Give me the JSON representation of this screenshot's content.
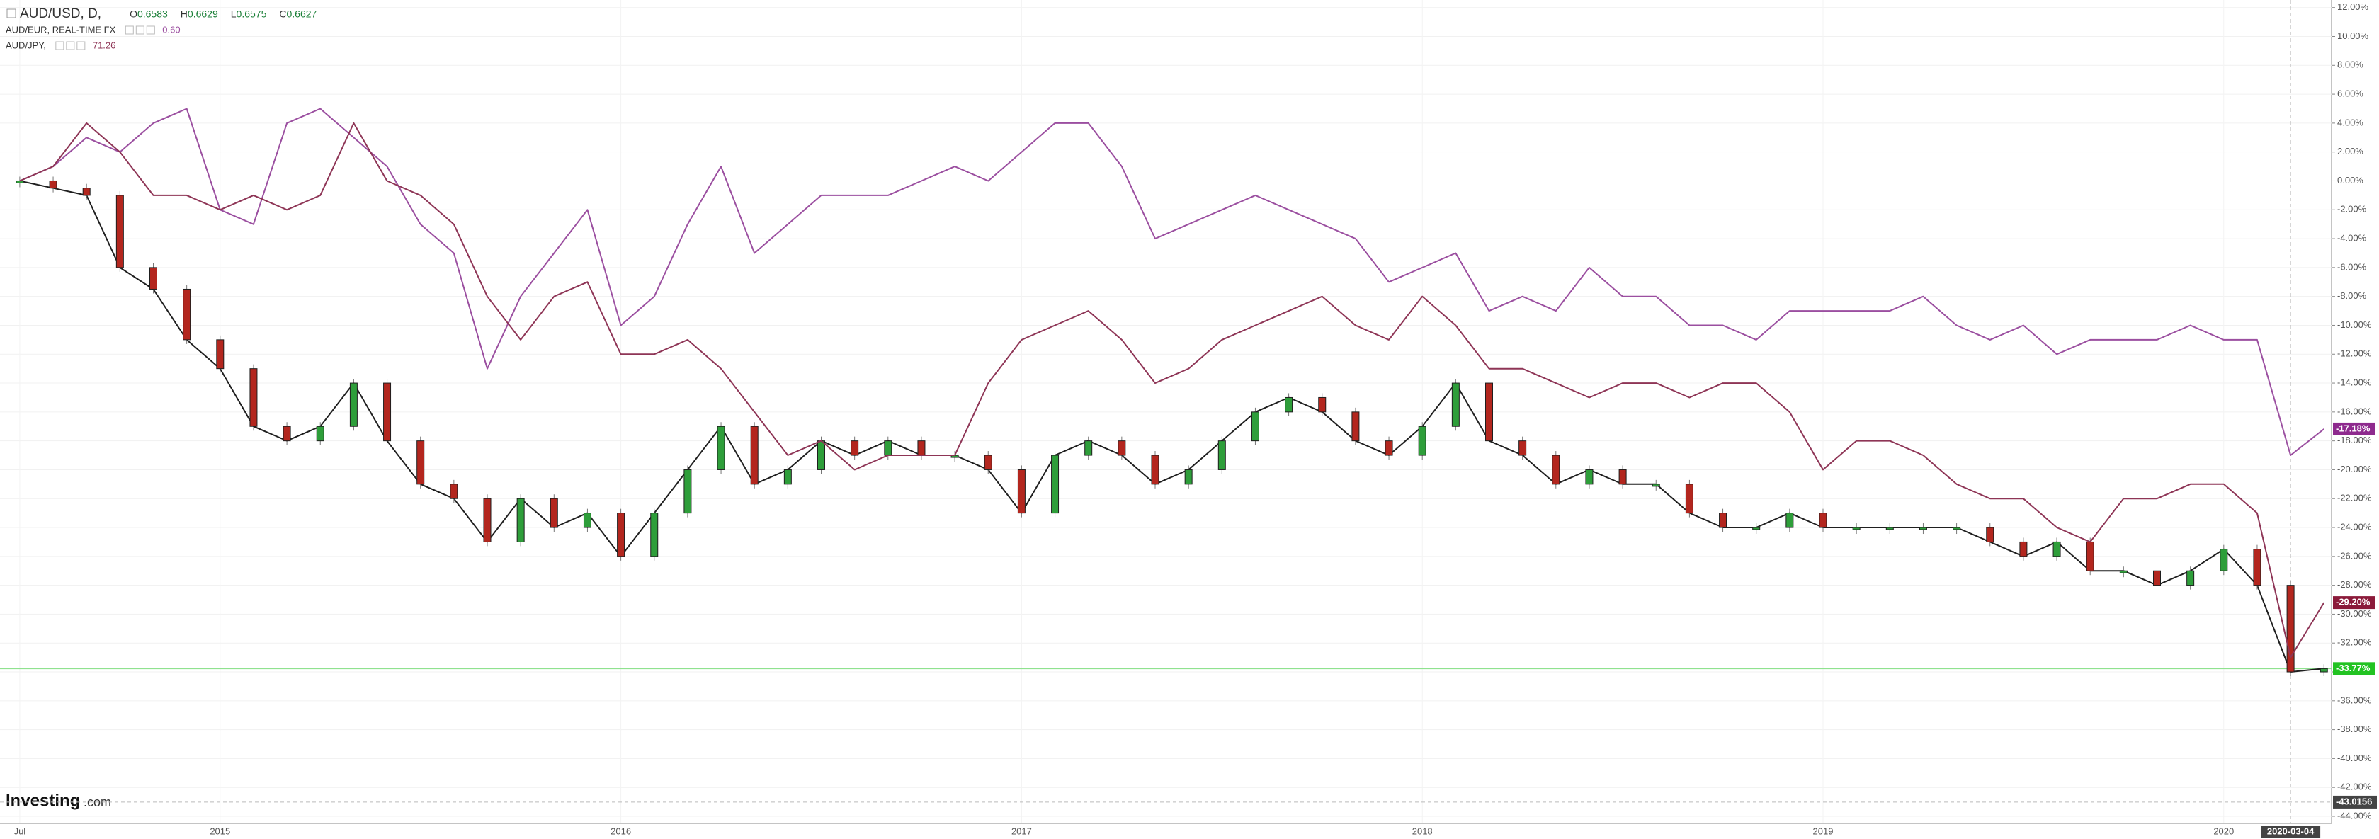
{
  "chart_data": {
    "type": "line",
    "header": {
      "symbol": "AUD/USD, D,",
      "ohlc": [
        {
          "label": "O",
          "value": 0.6583
        },
        {
          "label": "H",
          "value": 0.6629
        },
        {
          "label": "L",
          "value": 0.6575
        },
        {
          "label": "C",
          "value": 0.6627
        }
      ]
    },
    "watermark": "Investing",
    "watermark_suffix": ".com",
    "categories": [
      "Jul",
      null,
      null,
      null,
      null,
      null,
      "2015",
      null,
      null,
      null,
      null,
      null,
      null,
      null,
      null,
      null,
      null,
      null,
      "2016",
      null,
      null,
      null,
      null,
      null,
      null,
      null,
      null,
      null,
      null,
      null,
      "2017",
      null,
      null,
      null,
      null,
      null,
      null,
      null,
      null,
      null,
      null,
      null,
      "2018",
      null,
      null,
      null,
      null,
      null,
      null,
      null,
      null,
      null,
      null,
      null,
      "2019",
      null,
      null,
      null,
      null,
      null,
      null,
      null,
      null,
      null,
      null,
      null,
      "2020",
      null,
      "2020-03-04",
      null
    ],
    "highlight_category": 68,
    "series": [
      {
        "name": "AUD/USD, D,",
        "style": "candles",
        "color": "#1f1f1f",
        "up_color": "#2e9e3a",
        "down_color": "#b3261e",
        "badge_color": "#22c322",
        "line_color": "#8fe28f",
        "end_label": "-33.77%",
        "values": [
          0,
          -0.5,
          -1,
          -6,
          -7.5,
          -11,
          -13,
          -17,
          -18,
          -17,
          -14,
          -18,
          -21,
          -22,
          -25,
          -22,
          -24,
          -23,
          -26,
          -23,
          -20,
          -17,
          -21,
          -20,
          -18,
          -19,
          -18,
          -19,
          -19,
          -20,
          -23,
          -19,
          -18,
          -19,
          -21,
          -20,
          -18,
          -16,
          -15,
          -16,
          -18,
          -19,
          -17,
          -14,
          -18,
          -19,
          -21,
          -20,
          -21,
          -21,
          -23,
          -24,
          -24,
          -23,
          -24,
          -24,
          -24,
          -24,
          -24,
          -25,
          -26,
          -25,
          -27,
          -27,
          -28,
          -27,
          -25.5,
          -28,
          -34,
          -33.77
        ]
      },
      {
        "name": "AUD/EUR, REAL-TIME FX",
        "quote": "0.60",
        "style": "line",
        "color": "#9b4fa0",
        "badge_color": "#8e2a8e",
        "end_label": "-17.18%",
        "values": [
          0,
          1,
          3,
          2,
          4,
          5,
          -2,
          -3,
          4,
          5,
          3,
          1,
          -3,
          -5,
          -13,
          -8,
          -5,
          -2,
          -10,
          -8,
          -3,
          1,
          -5,
          -3,
          -1,
          -1,
          -1,
          0,
          1,
          0,
          2,
          4,
          4,
          1,
          -4,
          -3,
          -2,
          -1,
          -2,
          -3,
          -4,
          -7,
          -6,
          -5,
          -9,
          -8,
          -9,
          -6,
          -8,
          -8,
          -10,
          -10,
          -11,
          -9,
          -9,
          -9,
          -9,
          -8,
          -10,
          -11,
          -10,
          -12,
          -11,
          -11,
          -11,
          -10,
          -11,
          -11,
          -19,
          -17.18
        ]
      },
      {
        "name": "AUD/JPY,",
        "quote": 71.26,
        "style": "line",
        "color": "#8e3556",
        "badge_color": "#8b1a3a",
        "end_label": "-29.20%",
        "values": [
          0,
          1,
          4,
          2,
          -1,
          -1,
          -2,
          -1,
          -2,
          -1,
          4,
          0,
          -1,
          -3,
          -8,
          -11,
          -8,
          -7,
          -12,
          -12,
          -11,
          -13,
          -16,
          -19,
          -18,
          -20,
          -19,
          -19,
          -19,
          -14,
          -11,
          -10,
          -9,
          -11,
          -14,
          -13,
          -11,
          -10,
          -9,
          -8,
          -10,
          -11,
          -8,
          -10,
          -13,
          -13,
          -14,
          -15,
          -14,
          -14,
          -15,
          -14,
          -14,
          -16,
          -20,
          -18,
          -18,
          -19,
          -21,
          -22,
          -22,
          -24,
          -25,
          -22,
          -22,
          -21,
          -21,
          -23,
          -33,
          -29.2
        ]
      }
    ],
    "crosshair": {
      "y": -43.0156
    },
    "ylim": [
      12,
      -44.5
    ],
    "yticks": [
      {
        "value": 12,
        "label": "12.00%"
      },
      {
        "value": 10,
        "label": "10.00%"
      },
      {
        "value": 8,
        "label": "8.00%"
      },
      {
        "value": 6,
        "label": "6.00%"
      },
      {
        "value": 4,
        "label": "4.00%"
      },
      {
        "value": 2,
        "label": "2.00%"
      },
      {
        "value": 0,
        "label": "0.00%"
      },
      {
        "value": -2,
        "label": "-2.00%"
      },
      {
        "value": -4,
        "label": "-4.00%"
      },
      {
        "value": -6,
        "label": "-6.00%"
      },
      {
        "value": -8,
        "label": "-8.00%"
      },
      {
        "value": -10,
        "label": "-10.00%"
      },
      {
        "value": -12,
        "label": "-12.00%"
      },
      {
        "value": -14,
        "label": "-14.00%"
      },
      {
        "value": -16,
        "label": "-16.00%"
      },
      {
        "value": -18,
        "label": "-18.00%"
      },
      {
        "value": -20,
        "label": "-20.00%"
      },
      {
        "value": -22,
        "label": "-22.00%"
      },
      {
        "value": -24,
        "label": "-24.00%"
      },
      {
        "value": -26,
        "label": "-26.00%"
      },
      {
        "value": -28,
        "label": "-28.00%"
      },
      {
        "value": -30,
        "label": "-30.00%"
      },
      {
        "value": -32,
        "label": "-32.00%"
      },
      {
        "value": -34,
        "label": "-34.00%"
      },
      {
        "value": -36,
        "label": "-36.00%"
      },
      {
        "value": -38,
        "label": "-38.00%"
      },
      {
        "value": -40,
        "label": "-40.00%"
      },
      {
        "value": -42,
        "label": "-42.00%"
      },
      {
        "value": -44,
        "label": "-44.00%"
      }
    ],
    "grid": true
  }
}
